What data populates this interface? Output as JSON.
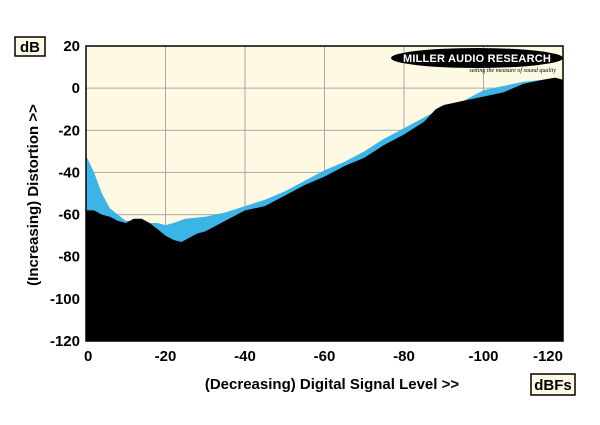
{
  "chart_data": {
    "type": "area",
    "title": "",
    "xlabel": "(Decreasing) Digital Signal Level >>",
    "ylabel": "(Increasing) Distortion >>",
    "x_unit": "dBFs",
    "y_unit": "dB",
    "xlim": [
      0,
      -120
    ],
    "ylim": [
      -120,
      20
    ],
    "x_ticks": [
      "0",
      "-20",
      "-40",
      "-60",
      "-80",
      "-100",
      "-120"
    ],
    "y_ticks": [
      "20",
      "0",
      "-20",
      "-40",
      "-60",
      "-80",
      "-100",
      "-120"
    ],
    "grid": true,
    "logo": {
      "name": "MILLER AUDIO RESEARCH",
      "tagline": "setting the measure of sound quality"
    },
    "colors": {
      "plot_background": "#fdf9e3",
      "grid": "#a9a9a9",
      "series_blue": "#3cb4e6",
      "series_black": "#000000",
      "frame": "#000000"
    },
    "series": [
      {
        "color": "#3cb4e6",
        "x": [
          0,
          -2,
          -4,
          -6,
          -8,
          -10,
          -12,
          -14,
          -16,
          -18,
          -20,
          -22,
          -25,
          -30,
          -35,
          -40,
          -45,
          -50,
          -55,
          -60,
          -65,
          -70,
          -75,
          -80,
          -85,
          -90,
          -95,
          -100,
          -105,
          -110,
          -115,
          -118,
          -120
        ],
        "values": [
          -32,
          -40,
          -50,
          -57,
          -60,
          -63,
          -63,
          -63,
          -64,
          -64,
          -65,
          -64,
          -62,
          -61,
          -59,
          -56,
          -53,
          -49,
          -44,
          -39,
          -35,
          -30,
          -24,
          -19,
          -14,
          -9,
          -6,
          -1,
          1,
          3,
          4,
          4,
          3
        ]
      },
      {
        "color": "#000000",
        "x": [
          0,
          -2,
          -4,
          -6,
          -8,
          -10,
          -12,
          -14,
          -16,
          -18,
          -20,
          -22,
          -24,
          -26,
          -28,
          -30,
          -35,
          -40,
          -45,
          -50,
          -55,
          -60,
          -65,
          -70,
          -75,
          -80,
          -85,
          -88,
          -90,
          -95,
          -100,
          -105,
          -110,
          -115,
          -118,
          -120
        ],
        "values": [
          -58,
          -58,
          -60,
          -61,
          -63,
          -64,
          -62,
          -62,
          -64,
          -67,
          -70,
          -72,
          -73,
          -71,
          -69,
          -68,
          -63,
          -58,
          -56,
          -51,
          -46,
          -42,
          -37,
          -33,
          -27,
          -22,
          -16,
          -10,
          -8,
          -6,
          -4,
          -2,
          2,
          4,
          5,
          4
        ]
      }
    ]
  }
}
